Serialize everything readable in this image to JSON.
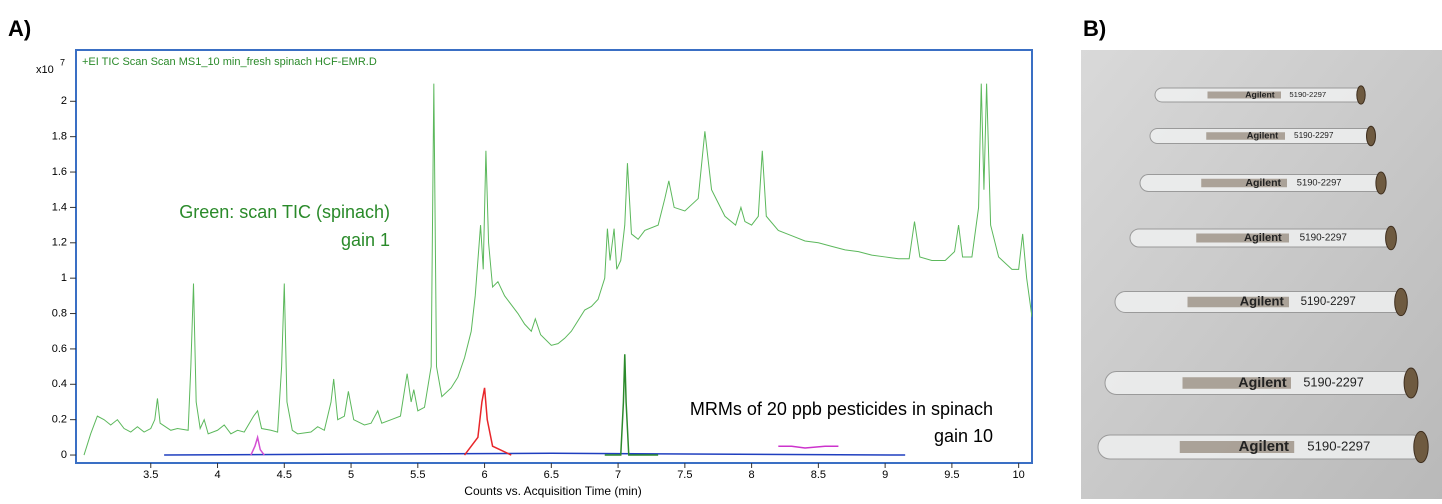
{
  "panel_a_label": "A)",
  "chart_data": {
    "type": "line",
    "title": "+EI TIC Scan Scan MS1_10 min_fresh spinach HCF-EMR.D",
    "x_label": "Counts vs. Acquisition Time (min)",
    "y_scale_label": "x10",
    "y_scale_exponent": "7",
    "annotations": [
      "Green: scan TIC (spinach)",
      "gain 1",
      "MRMs of 20 ppb pesticides in spinach",
      "gain 10"
    ],
    "xlim": [
      2.94,
      10.1
    ],
    "ylim": [
      -0.045,
      2.29
    ],
    "xticks": [
      3.5,
      4,
      4.5,
      5,
      5.5,
      6,
      6.5,
      7,
      7.5,
      8,
      8.5,
      9,
      9.5,
      10
    ],
    "yticks": [
      0,
      0.2,
      0.4,
      0.6,
      0.8,
      1,
      1.2,
      1.4,
      1.6,
      1.8,
      2
    ],
    "series": [
      {
        "color": "#5cb85c",
        "x": [
          3.0,
          3.05,
          3.1,
          3.15,
          3.2,
          3.25,
          3.3,
          3.35,
          3.4,
          3.45,
          3.5,
          3.53,
          3.55,
          3.57,
          3.65,
          3.7,
          3.78,
          3.8,
          3.82,
          3.84,
          3.87,
          3.9,
          3.93,
          4.0,
          4.05,
          4.1,
          4.15,
          4.2,
          4.27,
          4.3,
          4.33,
          4.4,
          4.45,
          4.48,
          4.5,
          4.52,
          4.56,
          4.6,
          4.7,
          4.75,
          4.8,
          4.85,
          4.87,
          4.9,
          4.95,
          4.98,
          5.02,
          5.1,
          5.15,
          5.2,
          5.23,
          5.3,
          5.37,
          5.42,
          5.45,
          5.47,
          5.5,
          5.55,
          5.6,
          5.62,
          5.64,
          5.68,
          5.75,
          5.8,
          5.85,
          5.9,
          5.93,
          5.97,
          5.99,
          6.01,
          6.03,
          6.06,
          6.1,
          6.15,
          6.2,
          6.25,
          6.3,
          6.35,
          6.38,
          6.42,
          6.5,
          6.55,
          6.6,
          6.65,
          6.7,
          6.75,
          6.8,
          6.85,
          6.9,
          6.92,
          6.94,
          6.97,
          6.99,
          7.02,
          7.05,
          7.07,
          7.1,
          7.15,
          7.2,
          7.3,
          7.35,
          7.38,
          7.42,
          7.5,
          7.6,
          7.65,
          7.7,
          7.8,
          7.88,
          7.92,
          7.95,
          8.0,
          8.05,
          8.08,
          8.11,
          8.2,
          8.3,
          8.4,
          8.5,
          8.6,
          8.7,
          8.8,
          8.9,
          9.0,
          9.1,
          9.18,
          9.22,
          9.26,
          9.35,
          9.45,
          9.52,
          9.55,
          9.58,
          9.65,
          9.7,
          9.72,
          9.74,
          9.76,
          9.79,
          9.85,
          9.95,
          10.0,
          10.03,
          10.06,
          10.1
        ],
        "values": [
          0.0,
          0.12,
          0.22,
          0.2,
          0.17,
          0.2,
          0.15,
          0.13,
          0.16,
          0.13,
          0.15,
          0.2,
          0.32,
          0.18,
          0.14,
          0.15,
          0.14,
          0.5,
          0.97,
          0.3,
          0.15,
          0.2,
          0.12,
          0.14,
          0.17,
          0.12,
          0.14,
          0.13,
          0.22,
          0.25,
          0.15,
          0.14,
          0.13,
          0.5,
          0.97,
          0.3,
          0.14,
          0.12,
          0.13,
          0.16,
          0.14,
          0.3,
          0.43,
          0.2,
          0.22,
          0.36,
          0.2,
          0.17,
          0.18,
          0.25,
          0.18,
          0.2,
          0.22,
          0.46,
          0.3,
          0.37,
          0.25,
          0.27,
          0.5,
          2.1,
          0.5,
          0.33,
          0.38,
          0.44,
          0.55,
          0.7,
          0.9,
          1.3,
          1.05,
          1.72,
          1.2,
          0.95,
          0.98,
          0.9,
          0.85,
          0.8,
          0.74,
          0.7,
          0.77,
          0.68,
          0.62,
          0.63,
          0.66,
          0.7,
          0.76,
          0.82,
          0.84,
          0.88,
          1.0,
          1.28,
          1.1,
          1.28,
          1.05,
          1.1,
          1.3,
          1.65,
          1.25,
          1.22,
          1.27,
          1.3,
          1.45,
          1.55,
          1.4,
          1.38,
          1.45,
          1.83,
          1.5,
          1.35,
          1.3,
          1.4,
          1.32,
          1.3,
          1.35,
          1.72,
          1.35,
          1.27,
          1.24,
          1.21,
          1.2,
          1.18,
          1.16,
          1.15,
          1.13,
          1.12,
          1.11,
          1.11,
          1.32,
          1.12,
          1.1,
          1.1,
          1.15,
          1.3,
          1.12,
          1.12,
          1.4,
          2.1,
          1.5,
          2.1,
          1.3,
          1.12,
          1.05,
          1.05,
          1.25,
          1.0,
          0.78
        ]
      },
      {
        "color": "#1f3fbf",
        "x": [
          3.6,
          5.0,
          6.5,
          9.15
        ],
        "values": [
          0,
          0.005,
          0.01,
          0
        ]
      },
      {
        "color": "#e8262a",
        "x": [
          5.85,
          5.95,
          5.98,
          6.0,
          6.02,
          6.06,
          6.2
        ],
        "values": [
          0,
          0.1,
          0.3,
          0.38,
          0.2,
          0.05,
          0
        ]
      },
      {
        "color": "#d34fd3",
        "x": [
          4.25,
          4.28,
          4.3,
          4.32,
          4.35
        ],
        "values": [
          0,
          0.05,
          0.1,
          0.03,
          0
        ]
      },
      {
        "color": "#2b8a2b",
        "x": [
          6.9,
          7.02,
          7.04,
          7.05,
          7.06,
          7.08,
          7.3
        ],
        "values": [
          0,
          0,
          0.3,
          0.57,
          0.3,
          0,
          0
        ]
      },
      {
        "color": "#cc33cc",
        "x": [
          8.2,
          8.3,
          8.4,
          8.55,
          8.65
        ],
        "values": [
          0.05,
          0.05,
          0.04,
          0.05,
          0.05
        ]
      }
    ]
  },
  "panel_b": {
    "label": "B)",
    "brand": "Agilent",
    "part_number": "5190-2297"
  }
}
